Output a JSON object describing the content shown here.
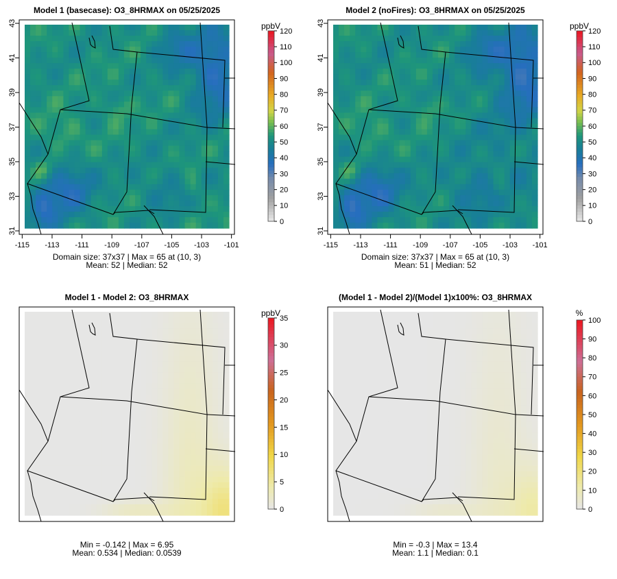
{
  "chart_data": [
    {
      "type": "heatmap",
      "title": "Model 1 (basecase): O3_8HRMAX on 05/25/2025",
      "xticks": [
        "-115",
        "-113",
        "-111",
        "-109",
        "-107",
        "-105",
        "-103",
        "-101"
      ],
      "yticks": [
        "31",
        "33",
        "35",
        "37",
        "39",
        "41",
        "43"
      ],
      "xlim": [
        -115.2,
        -100.8
      ],
      "ylim": [
        30.8,
        43.2
      ],
      "colorbar": {
        "label": "ppbV",
        "min": 0,
        "max": 120,
        "ticks": [
          "0",
          "10",
          "20",
          "30",
          "40",
          "50",
          "60",
          "70",
          "80",
          "90",
          "100",
          "110",
          "120"
        ]
      },
      "palette": "ozone",
      "stats_line1": "Domain size: 37x37 | Max = 65 at (10, 3)",
      "stats_line2": "Mean: 52 |  Median: 52",
      "domain_size": "37x37",
      "max": 65,
      "max_location": "(10, 3)",
      "mean": 52,
      "median": 52
    },
    {
      "type": "heatmap",
      "title": "Model 2 (noFires): O3_8HRMAX on 05/25/2025",
      "xticks": [
        "-115",
        "-113",
        "-111",
        "-109",
        "-107",
        "-105",
        "-103",
        "-101"
      ],
      "yticks": [
        "31",
        "33",
        "35",
        "37",
        "39",
        "41",
        "43"
      ],
      "xlim": [
        -115.2,
        -100.8
      ],
      "ylim": [
        30.8,
        43.2
      ],
      "colorbar": {
        "label": "ppbV",
        "min": 0,
        "max": 120,
        "ticks": [
          "0",
          "10",
          "20",
          "30",
          "40",
          "50",
          "60",
          "70",
          "80",
          "90",
          "100",
          "110",
          "120"
        ]
      },
      "palette": "ozone",
      "stats_line1": "Domain size: 37x37 | Max = 65 at (10, 3)",
      "stats_line2": "Mean: 51 |  Median: 52",
      "domain_size": "37x37",
      "max": 65,
      "max_location": "(10, 3)",
      "mean": 51,
      "median": 52
    },
    {
      "type": "heatmap",
      "title": "Model 1 - Model 2: O3_8HRMAX",
      "colorbar": {
        "label": "ppbV",
        "min": 0,
        "max": 35,
        "ticks": [
          "0",
          "5",
          "10",
          "15",
          "20",
          "25",
          "30",
          "35"
        ]
      },
      "palette": "diff",
      "stats_line1": "Min = -0.142 | Max = 6.95",
      "stats_line2": "Mean: 0.534 |  Median: 0.0539",
      "min": -0.142,
      "max": 6.95,
      "mean": 0.534,
      "median": 0.0539
    },
    {
      "type": "heatmap",
      "title": "(Model 1 - Model 2)/(Model 1)x100%: O3_8HRMAX",
      "colorbar": {
        "label": "%",
        "min": 0,
        "max": 100,
        "ticks": [
          "0",
          "10",
          "20",
          "30",
          "40",
          "50",
          "60",
          "70",
          "80",
          "90",
          "100"
        ]
      },
      "palette": "diff",
      "stats_line1": "Min = -0.3 | Max = 13.4",
      "stats_line2": "Mean: 1.1 |  Median: 0.1",
      "min": -0.3,
      "max": 13.4,
      "mean": 1.1,
      "median": 0.1
    }
  ]
}
